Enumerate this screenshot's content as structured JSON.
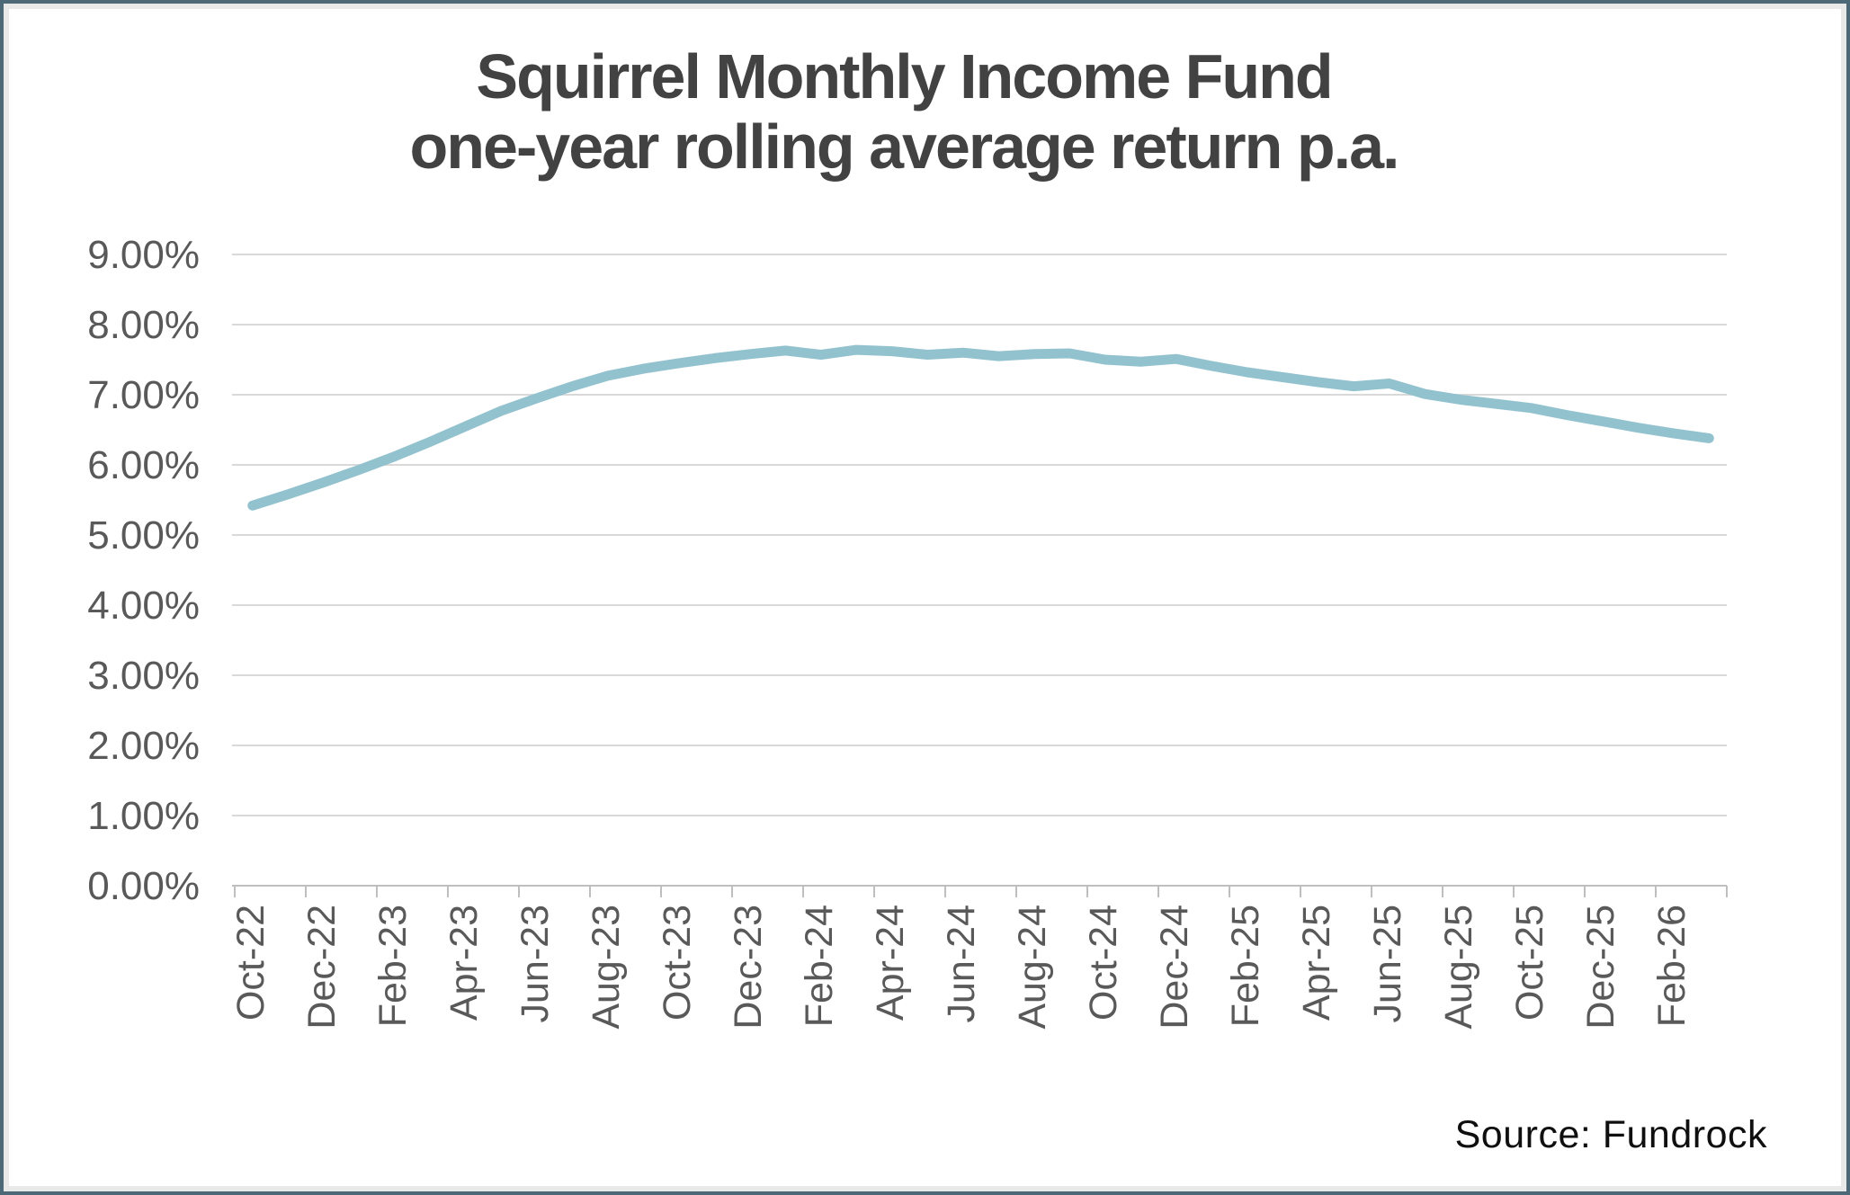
{
  "page": {
    "border_color": "#4d6877",
    "inner_border_color": "#e9e9e9",
    "background": "#ffffff"
  },
  "title": {
    "line1": "Squirrel Monthly Income Fund",
    "line2": "one-year rolling average return p.a."
  },
  "source": {
    "label": "Source: Fundrock"
  },
  "chart_data": {
    "type": "line",
    "title": "Squirrel Monthly Income Fund one-year rolling average return p.a.",
    "xlabel": "",
    "ylabel": "",
    "ylim": [
      0,
      9
    ],
    "grid": "horizontal",
    "legend": "none",
    "line_color": "#93c2cf",
    "gridline_color": "#d9d9d9",
    "axis_color": "#bfbfbf",
    "tick_label_color": "#595959",
    "y_ticks": [
      "0.00%",
      "1.00%",
      "2.00%",
      "3.00%",
      "4.00%",
      "5.00%",
      "6.00%",
      "7.00%",
      "8.00%",
      "9.00%"
    ],
    "y_tick_values": [
      0,
      1,
      2,
      3,
      4,
      5,
      6,
      7,
      8,
      9
    ],
    "x_tick_labels": [
      "Oct-22",
      "Dec-22",
      "Feb-23",
      "Apr-23",
      "Jun-23",
      "Aug-23",
      "Oct-23",
      "Dec-23",
      "Feb-24",
      "Apr-24",
      "Jun-24",
      "Aug-24",
      "Oct-24",
      "Dec-24",
      "Feb-25",
      "Apr-25",
      "Jun-25",
      "Aug-25",
      "Oct-25",
      "Dec-25",
      "Feb-26"
    ],
    "x": [
      "Oct-22",
      "Nov-22",
      "Dec-22",
      "Jan-23",
      "Feb-23",
      "Mar-23",
      "Apr-23",
      "May-23",
      "Jun-23",
      "Jul-23",
      "Aug-23",
      "Sep-23",
      "Oct-23",
      "Nov-23",
      "Dec-23",
      "Jan-24",
      "Feb-24",
      "Mar-24",
      "Apr-24",
      "May-24",
      "Jun-24",
      "Jul-24",
      "Aug-24",
      "Sep-24",
      "Oct-24",
      "Nov-24",
      "Dec-24",
      "Jan-25",
      "Feb-25",
      "Mar-25",
      "Apr-25",
      "May-25",
      "Jun-25",
      "Jul-25",
      "Aug-25",
      "Sep-25",
      "Oct-25",
      "Nov-25",
      "Dec-25",
      "Jan-26",
      "Feb-26",
      "Mar-26"
    ],
    "series": [
      {
        "name": "one-year rolling average return p.a. (%)",
        "values": [
          5.42,
          5.58,
          5.75,
          5.93,
          6.12,
          6.33,
          6.55,
          6.77,
          6.95,
          7.12,
          7.27,
          7.37,
          7.45,
          7.52,
          7.58,
          7.63,
          7.57,
          7.64,
          7.62,
          7.57,
          7.6,
          7.55,
          7.58,
          7.59,
          7.5,
          7.47,
          7.51,
          7.41,
          7.32,
          7.25,
          7.18,
          7.12,
          7.16,
          7.01,
          6.93,
          6.87,
          6.81,
          6.71,
          6.62,
          6.53,
          6.45,
          6.38
        ]
      }
    ]
  }
}
